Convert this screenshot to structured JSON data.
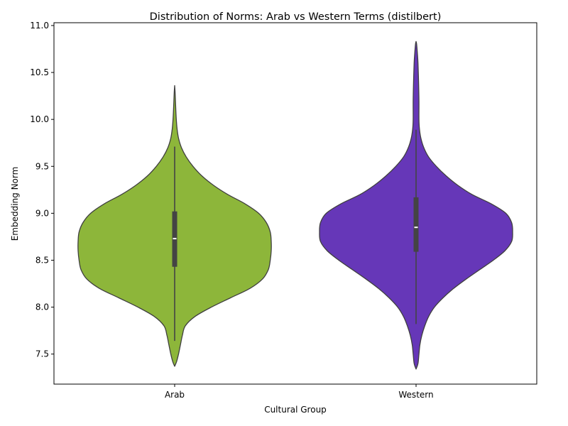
{
  "chart_data": {
    "type": "violin",
    "title": "Distribution of Norms: Arab vs Western Terms (distilbert)",
    "xlabel": "Cultural Group",
    "ylabel": "Embedding Norm",
    "ylim": [
      7.18,
      11.03
    ],
    "yticks": [
      "7.5",
      "8.0",
      "8.5",
      "9.0",
      "9.5",
      "10.0",
      "10.5",
      "11.0"
    ],
    "grid": false,
    "categories": [
      "Arab",
      "Western"
    ],
    "series": [
      {
        "category": "Arab",
        "color": "#8db63a",
        "density_min": 7.37,
        "density_max": 10.36,
        "whisker_low": 7.64,
        "q1": 8.43,
        "median": 8.73,
        "q3": 9.02,
        "whisker_high": 9.71,
        "profile": [
          [
            7.37,
            0.0
          ],
          [
            7.42,
            0.02
          ],
          [
            7.5,
            0.04
          ],
          [
            7.6,
            0.06
          ],
          [
            7.7,
            0.08
          ],
          [
            7.8,
            0.11
          ],
          [
            7.9,
            0.21
          ],
          [
            8.0,
            0.38
          ],
          [
            8.1,
            0.58
          ],
          [
            8.2,
            0.78
          ],
          [
            8.3,
            0.91
          ],
          [
            8.4,
            0.97
          ],
          [
            8.5,
            0.99
          ],
          [
            8.6,
            1.0
          ],
          [
            8.7,
            1.0
          ],
          [
            8.8,
            0.99
          ],
          [
            8.9,
            0.95
          ],
          [
            9.0,
            0.87
          ],
          [
            9.1,
            0.73
          ],
          [
            9.2,
            0.55
          ],
          [
            9.3,
            0.4
          ],
          [
            9.4,
            0.28
          ],
          [
            9.5,
            0.19
          ],
          [
            9.6,
            0.12
          ],
          [
            9.7,
            0.07
          ],
          [
            9.8,
            0.04
          ],
          [
            9.9,
            0.025
          ],
          [
            10.0,
            0.017
          ],
          [
            10.1,
            0.012
          ],
          [
            10.2,
            0.008
          ],
          [
            10.3,
            0.004
          ],
          [
            10.36,
            0.0
          ]
        ]
      },
      {
        "category": "Western",
        "color": "#6637b8",
        "density_min": 7.34,
        "density_max": 10.83,
        "whisker_low": 7.82,
        "q1": 8.59,
        "median": 8.85,
        "q3": 9.17,
        "whisker_high": 9.89,
        "profile": [
          [
            7.34,
            0.0
          ],
          [
            7.4,
            0.02
          ],
          [
            7.5,
            0.03
          ],
          [
            7.6,
            0.04
          ],
          [
            7.7,
            0.06
          ],
          [
            7.8,
            0.09
          ],
          [
            7.9,
            0.13
          ],
          [
            8.0,
            0.19
          ],
          [
            8.1,
            0.28
          ],
          [
            8.2,
            0.39
          ],
          [
            8.3,
            0.52
          ],
          [
            8.4,
            0.66
          ],
          [
            8.5,
            0.8
          ],
          [
            8.6,
            0.92
          ],
          [
            8.7,
            0.99
          ],
          [
            8.8,
            1.0
          ],
          [
            8.9,
            0.99
          ],
          [
            9.0,
            0.93
          ],
          [
            9.1,
            0.78
          ],
          [
            9.2,
            0.58
          ],
          [
            9.3,
            0.43
          ],
          [
            9.4,
            0.31
          ],
          [
            9.5,
            0.21
          ],
          [
            9.6,
            0.13
          ],
          [
            9.7,
            0.08
          ],
          [
            9.8,
            0.05
          ],
          [
            9.9,
            0.035
          ],
          [
            10.0,
            0.03
          ],
          [
            10.2,
            0.03
          ],
          [
            10.4,
            0.026
          ],
          [
            10.6,
            0.02
          ],
          [
            10.7,
            0.014
          ],
          [
            10.8,
            0.006
          ],
          [
            10.83,
            0.0
          ]
        ]
      }
    ]
  }
}
